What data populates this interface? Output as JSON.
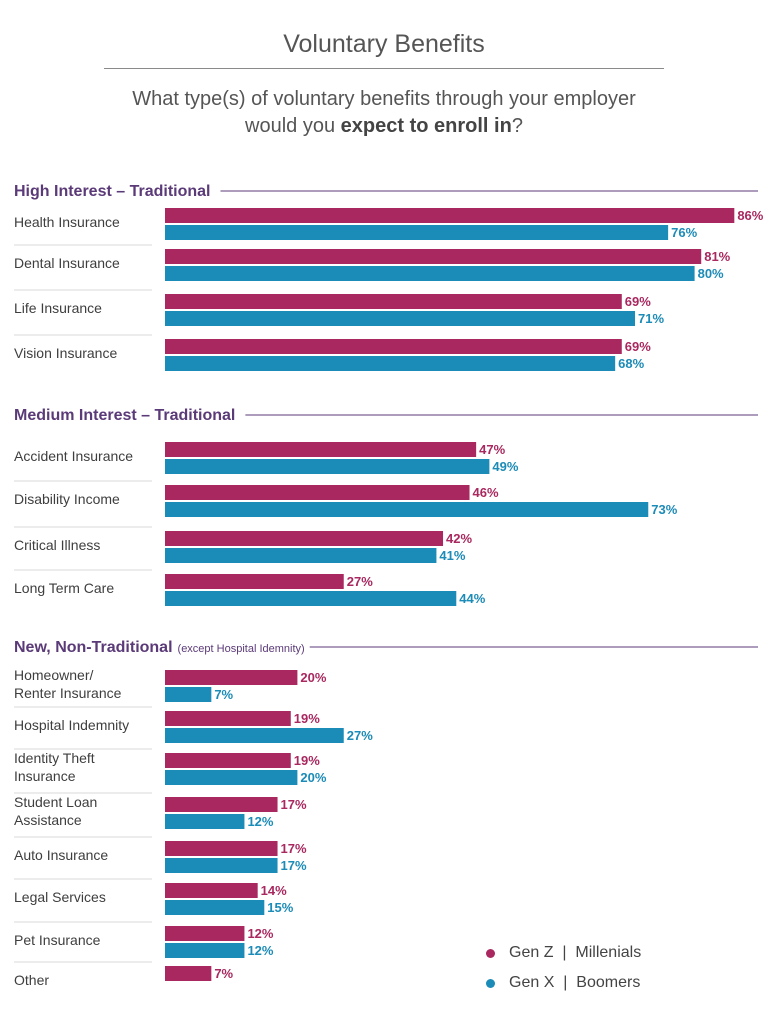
{
  "title": "Voluntary Benefits",
  "question": {
    "line1": "What type(s) of voluntary benefits through your employer",
    "line2_pre": "would you ",
    "line2_bold": "expect to enroll in",
    "line2_post": "?"
  },
  "legend": {
    "series1": "Gen Z  |  Millenials",
    "series2": "Gen X  |  Boomers"
  },
  "colors": {
    "series1": "#a9285f",
    "series2": "#1b8bb7",
    "section": "#5b3a78"
  },
  "chart_data": {
    "type": "bar",
    "orientation": "horizontal",
    "title": "Voluntary Benefits",
    "xlim": [
      0,
      86
    ],
    "grid": false,
    "legend_position": "bottom-right",
    "series_names": [
      "Gen Z  |  Millenials",
      "Gen X  |  Boomers"
    ],
    "sections": [
      {
        "title": "High Interest – Traditional",
        "note": "",
        "categories": [
          {
            "label": [
              "Health Insurance"
            ],
            "values": [
              86,
              76
            ]
          },
          {
            "label": [
              "Dental Insurance"
            ],
            "values": [
              81,
              80
            ]
          },
          {
            "label": [
              "Life Insurance"
            ],
            "values": [
              69,
              71
            ]
          },
          {
            "label": [
              "Vision Insurance"
            ],
            "values": [
              69,
              68
            ]
          }
        ]
      },
      {
        "title": "Medium Interest – Traditional",
        "note": "",
        "categories": [
          {
            "label": [
              "Accident Insurance"
            ],
            "values": [
              47,
              49
            ]
          },
          {
            "label": [
              "Disability Income"
            ],
            "values": [
              46,
              73
            ]
          },
          {
            "label": [
              "Critical Illness"
            ],
            "values": [
              42,
              41
            ]
          },
          {
            "label": [
              "Long Term Care"
            ],
            "values": [
              27,
              44
            ]
          }
        ]
      },
      {
        "title": "New, Non-Traditional",
        "note": "(except Hospital Idemnity)",
        "categories": [
          {
            "label": [
              "Homeowner/",
              "Renter Insurance"
            ],
            "values": [
              20,
              7
            ]
          },
          {
            "label": [
              "Hospital Indemnity"
            ],
            "values": [
              19,
              27
            ]
          },
          {
            "label": [
              "Identity Theft",
              "Insurance"
            ],
            "values": [
              19,
              20
            ]
          },
          {
            "label": [
              "Student Loan",
              "Assistance"
            ],
            "values": [
              17,
              12
            ]
          },
          {
            "label": [
              "Auto Insurance"
            ],
            "values": [
              17,
              17
            ]
          },
          {
            "label": [
              "Legal Services"
            ],
            "values": [
              14,
              15
            ]
          },
          {
            "label": [
              "Pet Insurance"
            ],
            "values": [
              12,
              12
            ]
          },
          {
            "label": [
              "Other"
            ],
            "values": [
              7,
              null
            ]
          }
        ]
      }
    ]
  }
}
